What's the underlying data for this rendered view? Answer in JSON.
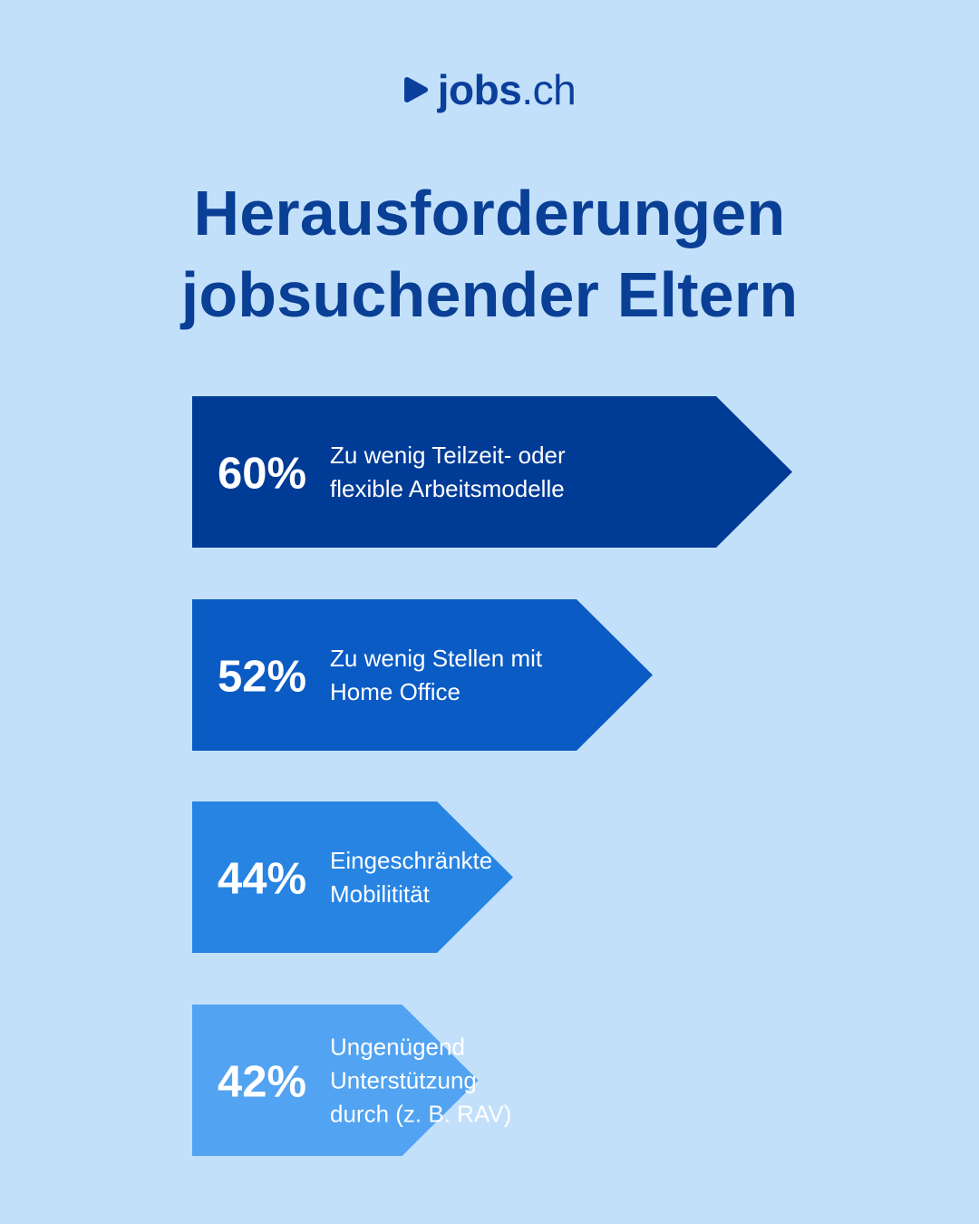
{
  "brand": {
    "name": "jobs",
    "tld": ".ch",
    "icon": "play-triangle-icon",
    "color": "#0b3f9c"
  },
  "title": {
    "lines": [
      "Herausforderungen",
      "jobsuchender Eltern"
    ]
  },
  "chart_data": {
    "type": "bar",
    "orientation": "horizontal",
    "value_unit": "%",
    "categories": [
      [
        "Zu wenig Teilzeit- oder",
        "flexible Arbeitsmodelle"
      ],
      [
        "Zu wenig Stellen mit",
        "Home Office"
      ],
      [
        "Eingeschränkte",
        "Mobilitität"
      ],
      [
        "Ungenügend",
        "Unterstützung",
        "durch (z. B. RAV)"
      ]
    ],
    "values": [
      60,
      52,
      44,
      42
    ],
    "value_labels": [
      "60%",
      "52%",
      "44%",
      "42%"
    ],
    "colors": [
      "#003b96",
      "#0a5bc4",
      "#2784e3",
      "#52a3f1"
    ],
    "title": "Herausforderungen jobsuchender Eltern",
    "xlabel": "",
    "ylabel": "",
    "grid": false,
    "legend": "none"
  }
}
